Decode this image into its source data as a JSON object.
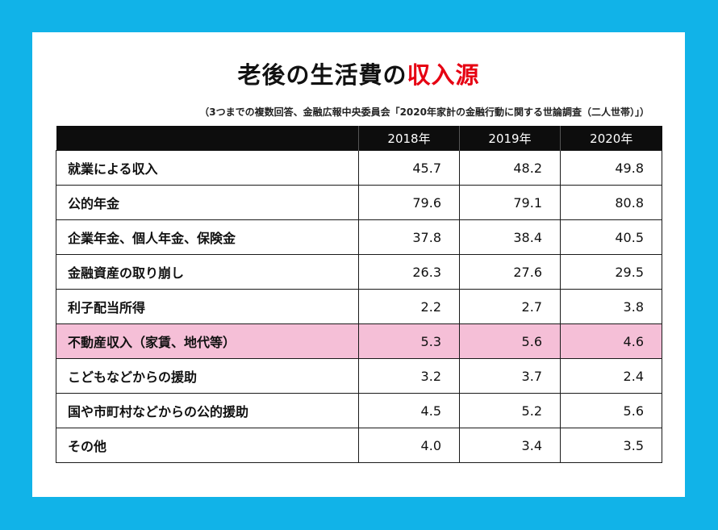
{
  "title": {
    "main": "老後の生活費の",
    "accent": "収入源"
  },
  "source": "（3つまでの複数回答、金融広報中央委員会「2020年家計の金融行動に関する世論調査（二人世帯）」）",
  "colors": {
    "background": "#11b3e8",
    "accent": "#e60012",
    "highlight_row": "#f5bfd7",
    "header": "#0d0d0d"
  },
  "chart_data": {
    "type": "table",
    "columns": [
      "",
      "2018年",
      "2019年",
      "2020年"
    ],
    "rows": [
      {
        "label": "就業による収入",
        "values": [
          "45.7",
          "48.2",
          "49.8"
        ],
        "highlight": false
      },
      {
        "label": "公的年金",
        "values": [
          "79.6",
          "79.1",
          "80.8"
        ],
        "highlight": false
      },
      {
        "label": "企業年金、個人年金、保険金",
        "values": [
          "37.8",
          "38.4",
          "40.5"
        ],
        "highlight": false
      },
      {
        "label": "金融資産の取り崩し",
        "values": [
          "26.3",
          "27.6",
          "29.5"
        ],
        "highlight": false
      },
      {
        "label": "利子配当所得",
        "values": [
          "2.2",
          "2.7",
          "3.8"
        ],
        "highlight": false
      },
      {
        "label": "不動産収入（家賃、地代等）",
        "values": [
          "5.3",
          "5.6",
          "4.6"
        ],
        "highlight": true
      },
      {
        "label": "こどもなどからの援助",
        "values": [
          "3.2",
          "3.7",
          "2.4"
        ],
        "highlight": false
      },
      {
        "label": "国や市町村などからの公的援助",
        "values": [
          "4.5",
          "5.2",
          "5.6"
        ],
        "highlight": false
      },
      {
        "label": "その他",
        "values": [
          "4.0",
          "3.4",
          "3.5"
        ],
        "highlight": false
      }
    ]
  }
}
